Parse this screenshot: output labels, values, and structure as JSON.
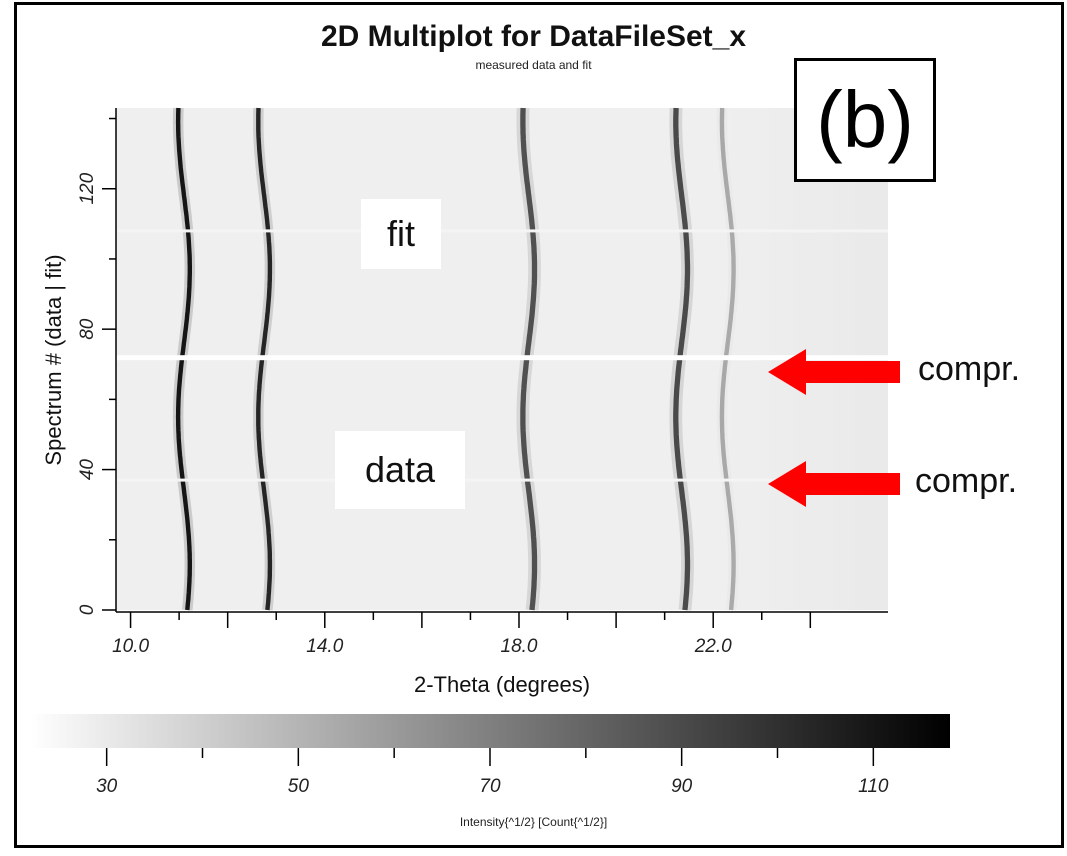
{
  "chart_data": {
    "type": "heatmap",
    "title": "2D Multiplot for DataFileSet_x",
    "subtitle": "measured data and fit",
    "panel_label": "(b)",
    "xlabel": "2-Theta (degrees)",
    "ylabel": "Spectrum # (data | fit)",
    "xlim": [
      9.7,
      25.6
    ],
    "ylim": [
      0,
      143
    ],
    "x_ticks": [
      10.0,
      14.0,
      18.0,
      22.0
    ],
    "x_tick_labels": [
      "10.0",
      "14.0",
      "18.0",
      "22.0"
    ],
    "y_ticks": [
      0,
      40,
      80,
      120
    ],
    "y_tick_labels": [
      "0",
      "40",
      "80",
      "120"
    ],
    "data_fit_divider_spectrum": 72,
    "region_labels": [
      {
        "text": "fit",
        "x": 15.2,
        "y": 108
      },
      {
        "text": "data",
        "x": 15.3,
        "y": 40
      }
    ],
    "peaks": [
      {
        "center": 11.1,
        "amplitude": 110,
        "width": 0.09
      },
      {
        "center": 12.75,
        "amplitude": 104,
        "width": 0.09
      },
      {
        "center": 18.2,
        "amplitude": 88,
        "width": 0.11
      },
      {
        "center": 21.35,
        "amplitude": 90,
        "width": 0.11
      },
      {
        "center": 22.3,
        "amplitude": 55,
        "width": 0.09
      }
    ],
    "background_intensity": 28,
    "annotations": [
      {
        "text": "compr.",
        "spectrum": 72
      },
      {
        "text": "compr.",
        "spectrum": 37
      }
    ],
    "colorbar": {
      "label": "Intensity{^1/2} [Count{^1/2}]",
      "range": [
        22,
        118
      ],
      "ticks": [
        30,
        50,
        70,
        90,
        110
      ],
      "tick_labels": [
        "30",
        "50",
        "70",
        "90",
        "110"
      ],
      "colormap": "white-to-black"
    }
  },
  "colors": {
    "arrow": "#ff0000",
    "frame": "#000000"
  }
}
